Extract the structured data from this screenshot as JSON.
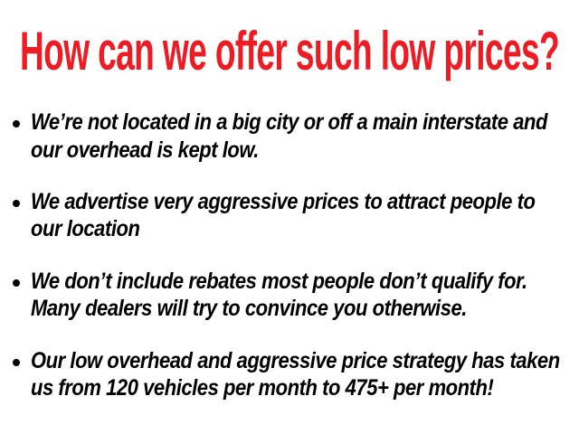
{
  "title": "How can we offer such low prices?",
  "colors": {
    "title": "#ed1c24",
    "text": "#000000"
  },
  "bullets": [
    {
      "lines": [
        "We’re not located in a big city or off a main interstate and",
        "our overhead is kept low."
      ]
    },
    {
      "lines": [
        "We advertise very aggressive prices to attract people to",
        "our location"
      ]
    },
    {
      "lines": [
        "We don’t include rebates most people don’t qualify for.",
        "Many dealers will try to convince you otherwise."
      ]
    },
    {
      "lines": [
        "Our low overhead and aggressive price strategy has taken",
        "us from 120 vehicles per month to 475+ per month!"
      ]
    }
  ]
}
